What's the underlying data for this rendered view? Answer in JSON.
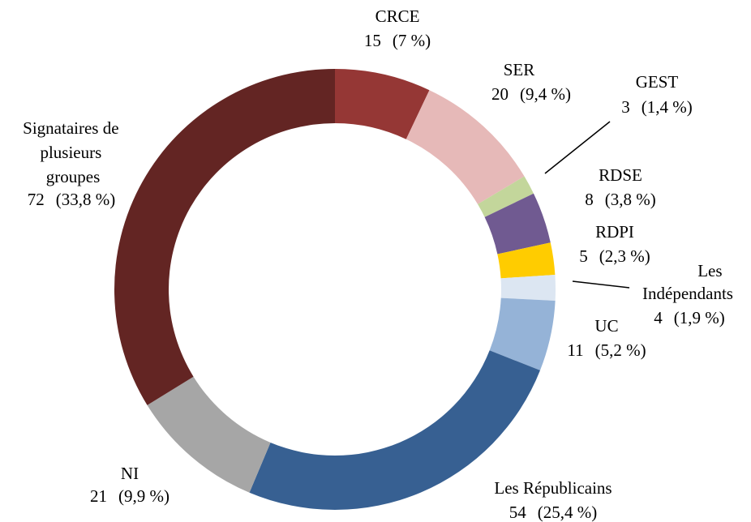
{
  "chart_data": {
    "type": "donut",
    "categories": [
      "CRCE",
      "SER",
      "GEST",
      "RDSE",
      "RDPI",
      "Les Indépendants",
      "UC",
      "Les Républicains",
      "NI",
      "Signataires de plusieurs groupes"
    ],
    "values": [
      15,
      20,
      3,
      8,
      5,
      4,
      11,
      54,
      21,
      72
    ],
    "percent_labels": [
      "(7 %)",
      "(9,4 %)",
      "(1,4 %)",
      "(3,8 %)",
      "(2,3 %)",
      "(1,9 %)",
      "(5,2 %)",
      "(25,4 %)",
      "(9,9 %)",
      "(33,8 %)"
    ],
    "colors": [
      "#953735",
      "#e6b9b8",
      "#c3d69b",
      "#705a91",
      "#ffcc00",
      "#dce6f2",
      "#95b3d7",
      "#376092",
      "#a6a6a6",
      "#632523"
    ]
  }
}
